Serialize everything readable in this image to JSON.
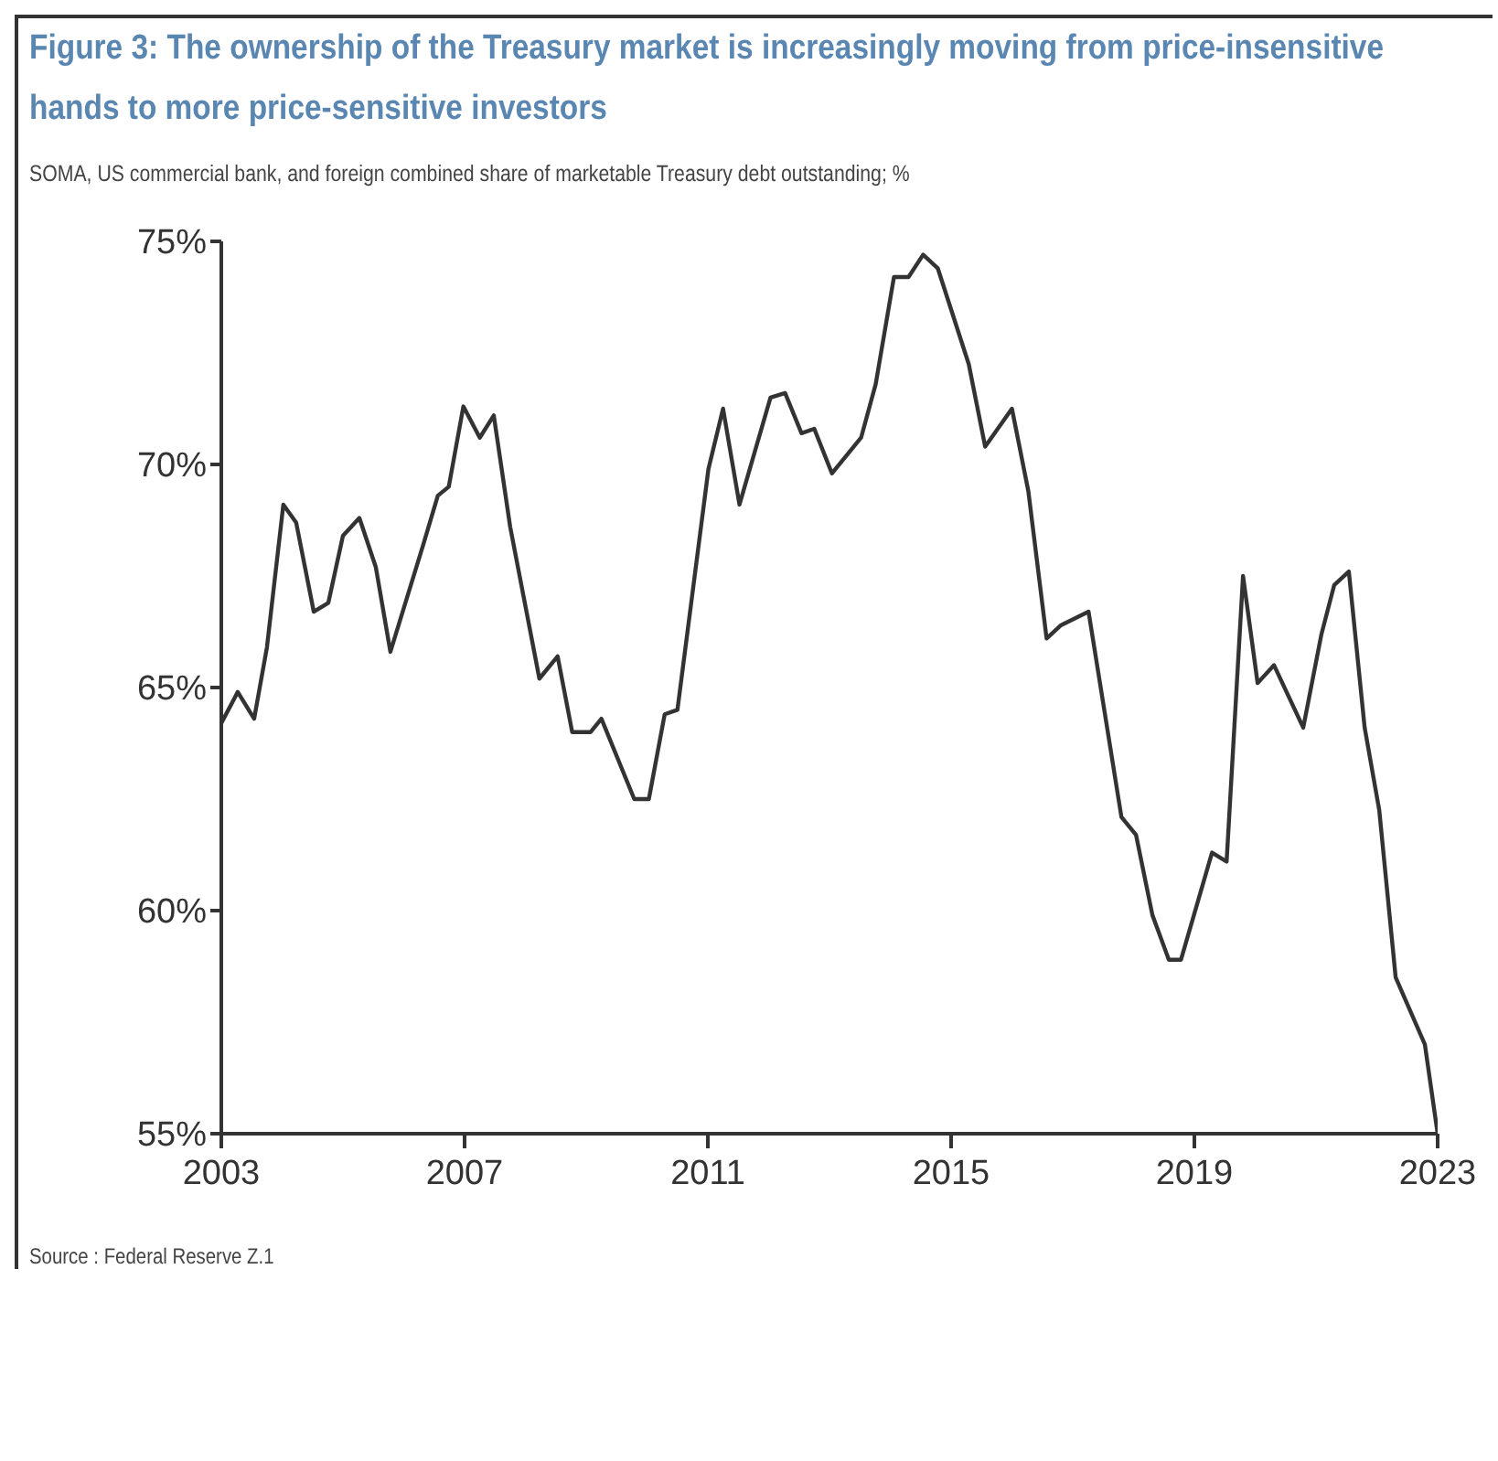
{
  "chart_data": {
    "type": "line",
    "title": "Figure 3: The ownership of the Treasury market is increasingly moving from price-insensitive hands to more price-sensitive investors",
    "subtitle": "SOMA, US commercial bank, and foreign combined share of marketable Treasury debt outstanding; %",
    "annotations": [
      "Source : Federal Reserve Z.1"
    ],
    "x": [
      2003.0,
      2003.27,
      2003.54,
      2003.75,
      2004.02,
      2004.23,
      2004.52,
      2004.76,
      2005.0,
      2005.27,
      2005.54,
      2005.78,
      2006.05,
      2006.32,
      2006.56,
      2006.74,
      2006.98,
      2007.25,
      2007.48,
      2007.75,
      2008.23,
      2008.53,
      2008.77,
      2009.07,
      2009.25,
      2009.79,
      2010.03,
      2010.29,
      2010.5,
      2011.01,
      2011.25,
      2011.52,
      2012.03,
      2012.27,
      2012.54,
      2012.75,
      2013.04,
      2013.52,
      2013.76,
      2014.06,
      2014.3,
      2014.54,
      2014.78,
      2015.29,
      2015.56,
      2016.0,
      2016.27,
      2016.57,
      2016.81,
      2017.26,
      2017.8,
      2018.04,
      2018.31,
      2018.58,
      2018.78,
      2019.29,
      2019.53,
      2019.8,
      2020.04,
      2020.31,
      2020.79,
      2021.09,
      2021.3,
      2021.54,
      2021.8,
      2022.04,
      2022.31,
      2022.79,
      2023.0
    ],
    "series": [
      {
        "color": "#333333",
        "values": [
          64.2,
          64.9,
          64.3,
          65.9,
          69.1,
          68.7,
          66.7,
          66.9,
          68.4,
          68.8,
          67.7,
          65.8,
          67.0,
          68.2,
          69.3,
          69.5,
          71.3,
          70.6,
          71.1,
          68.6,
          65.2,
          65.7,
          64.0,
          64.0,
          64.3,
          62.5,
          62.5,
          64.4,
          64.5,
          69.9,
          71.25,
          69.1,
          71.5,
          71.6,
          70.7,
          70.8,
          69.8,
          70.6,
          71.8,
          74.2,
          74.2,
          74.7,
          74.4,
          72.25,
          70.4,
          71.25,
          69.4,
          66.1,
          66.4,
          66.7,
          62.1,
          61.7,
          59.9,
          58.9,
          58.9,
          61.3,
          61.1,
          67.5,
          65.1,
          65.5,
          64.1,
          66.2,
          67.3,
          67.6,
          64.1,
          62.25,
          58.5,
          57.0,
          55.0
        ]
      }
    ],
    "xlim": [
      2003,
      2023
    ],
    "xticks": [
      2003,
      2007,
      2011,
      2015,
      2019,
      2023
    ],
    "ylim": [
      55,
      75
    ],
    "yticks": [
      {
        "value": 55,
        "label": "55%"
      },
      {
        "value": 60,
        "label": "60%"
      },
      {
        "value": 65,
        "label": "65%"
      },
      {
        "value": 70,
        "label": "70%"
      },
      {
        "value": 75,
        "label": "75%"
      }
    ],
    "grid": false,
    "legend": false,
    "marker": "none",
    "line_style": "solid"
  }
}
